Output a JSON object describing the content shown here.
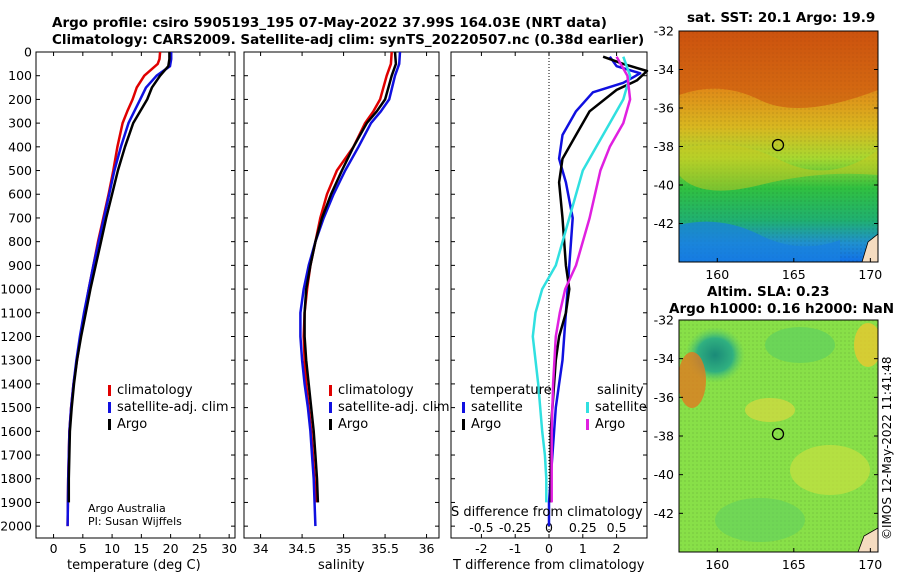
{
  "header": {
    "title_line1": "Argo profile: csiro 5905193_195 07-May-2022 37.99S 164.03E (NRT data)",
    "title_line2": "Climatology: CARS2009. Satellite-adj clim: synTS_20220507.nc (0.38d earlier)"
  },
  "credits": {
    "line1": "Argo Australia",
    "line2": "PI: Susan Wijffels",
    "side": "©IMOS 12-May-2022 11:41:48"
  },
  "colors": {
    "climatology": "#e00000",
    "satellite_adj": "#1010e0",
    "argo": "#000000",
    "satellite_salinity": "#30e0e0",
    "argo_salinity": "#e020e0"
  },
  "chart_data": [
    {
      "type": "line",
      "id": "temperature",
      "xlabel": "temperature (deg C)",
      "ylabel": "pressure",
      "xlim": [
        -3,
        31
      ],
      "ylim": [
        2050,
        0
      ],
      "xticks": [
        0,
        5,
        10,
        15,
        20,
        25,
        30
      ],
      "xtick_labels": [
        "0",
        "5",
        "10",
        "15",
        "20",
        "25",
        "30"
      ],
      "yticks": [
        0,
        100,
        200,
        300,
        400,
        500,
        600,
        700,
        800,
        900,
        1000,
        1100,
        1200,
        1300,
        1400,
        1500,
        1600,
        1700,
        1800,
        1900,
        2000
      ],
      "ytick_labels": [
        "0",
        "100",
        "200",
        "300",
        "400",
        "500",
        "600",
        "700",
        "800",
        "900",
        "1000",
        "1100",
        "1200",
        "1300",
        "1400",
        "1500",
        "1600",
        "1700",
        "1800",
        "1900",
        "2000"
      ],
      "legend": [
        "climatology",
        "satellite-adj. clim",
        "Argo"
      ],
      "series": [
        {
          "name": "climatology",
          "color": "#e00000",
          "x": [
            18.2,
            18.1,
            17.8,
            15.5,
            14.2,
            13.5,
            12.6,
            11.8,
            10.9,
            10.2,
            9.4,
            8.5,
            7.6,
            6.8,
            6.0,
            5.3,
            4.6,
            4.0,
            3.4,
            3.0,
            2.7,
            2.5,
            2.4
          ],
          "p": [
            0,
            30,
            50,
            100,
            150,
            200,
            250,
            300,
            400,
            500,
            600,
            700,
            800,
            900,
            1000,
            1100,
            1200,
            1300,
            1400,
            1500,
            1600,
            1800,
            2000
          ]
        },
        {
          "name": "satellite-adj. clim",
          "color": "#1010e0",
          "x": [
            20.1,
            20.1,
            19.9,
            17.6,
            15.8,
            14.8,
            13.8,
            12.8,
            11.5,
            10.4,
            9.5,
            8.6,
            7.7,
            6.8,
            6.0,
            5.2,
            4.5,
            3.9,
            3.4,
            3.0,
            2.7,
            2.5,
            2.4
          ],
          "p": [
            0,
            30,
            60,
            100,
            150,
            200,
            250,
            300,
            400,
            500,
            600,
            700,
            800,
            900,
            1000,
            1100,
            1200,
            1300,
            1400,
            1500,
            1600,
            1800,
            2000
          ]
        },
        {
          "name": "Argo",
          "color": "#000000",
          "x": [
            19.8,
            19.8,
            19.6,
            18.2,
            16.8,
            16.0,
            14.8,
            13.6,
            12.2,
            11.0,
            10.0,
            9.0,
            8.1,
            7.2,
            6.3,
            5.5,
            4.7,
            4.0,
            3.5,
            3.1,
            2.8,
            2.6,
            2.6
          ],
          "p": [
            0,
            30,
            60,
            100,
            150,
            200,
            250,
            300,
            400,
            500,
            600,
            700,
            800,
            900,
            1000,
            1100,
            1200,
            1300,
            1400,
            1500,
            1600,
            1800,
            1900
          ]
        }
      ]
    },
    {
      "type": "line",
      "id": "salinity",
      "xlabel": "salinity",
      "ylabel": "pressure",
      "xlim": [
        33.8,
        36.15
      ],
      "ylim": [
        2050,
        0
      ],
      "xticks": [
        34,
        34.5,
        35,
        35.5,
        36
      ],
      "xtick_labels": [
        "34",
        "34.5",
        "35",
        "35.5",
        "36"
      ],
      "legend": [
        "climatology",
        "satellite-adj. clim",
        "Argo"
      ],
      "series": [
        {
          "name": "climatology",
          "color": "#e00000",
          "x": [
            35.58,
            35.57,
            35.52,
            35.44,
            35.36,
            35.26,
            35.12,
            34.92,
            34.8,
            34.72,
            34.66,
            34.6,
            34.56,
            34.53,
            34.52,
            34.53,
            34.55,
            34.58,
            34.61,
            34.63,
            34.65,
            34.67
          ],
          "p": [
            0,
            50,
            100,
            200,
            250,
            300,
            400,
            500,
            600,
            700,
            800,
            900,
            1000,
            1100,
            1200,
            1300,
            1400,
            1500,
            1600,
            1700,
            1800,
            1900
          ]
        },
        {
          "name": "satellite-adj. clim",
          "color": "#1010e0",
          "x": [
            35.68,
            35.67,
            35.62,
            35.55,
            35.45,
            35.33,
            35.18,
            35.02,
            34.88,
            34.76,
            34.66,
            34.58,
            34.52,
            34.48,
            34.48,
            34.5,
            34.53,
            34.57,
            34.6,
            34.62,
            34.64,
            34.66
          ],
          "p": [
            0,
            50,
            100,
            200,
            250,
            300,
            400,
            500,
            600,
            700,
            800,
            900,
            1000,
            1100,
            1200,
            1300,
            1400,
            1500,
            1600,
            1700,
            1800,
            2000
          ]
        },
        {
          "name": "Argo",
          "color": "#000000",
          "x": [
            35.62,
            35.63,
            35.58,
            35.5,
            35.4,
            35.28,
            35.12,
            34.98,
            34.85,
            34.74,
            34.66,
            34.6,
            34.55,
            34.53,
            34.53,
            34.55,
            34.58,
            34.61,
            34.64,
            34.66,
            34.68,
            34.69
          ],
          "p": [
            0,
            50,
            100,
            200,
            250,
            300,
            400,
            500,
            600,
            700,
            800,
            900,
            1000,
            1100,
            1200,
            1300,
            1400,
            1500,
            1600,
            1700,
            1800,
            1900
          ]
        }
      ]
    },
    {
      "type": "line",
      "id": "difference",
      "xlabel": "T difference from climatology",
      "xlabel_top": "S difference from climatology",
      "xlim": [
        -2.9,
        2.9
      ],
      "ylim": [
        2050,
        0
      ],
      "xticks": [
        -2,
        -1,
        0,
        1,
        2
      ],
      "xtick_labels": [
        "-2",
        "-1",
        "0",
        "1",
        "2"
      ],
      "sticks": [
        -0.5,
        -0.25,
        0,
        0.25,
        0.5
      ],
      "stick_labels": [
        "-0.5",
        "-0.25",
        "0",
        "0.25",
        "0.5"
      ],
      "legend_left_title": "temperature",
      "legend_right_title": "salinity",
      "legend_left": [
        "satellite",
        "Argo"
      ],
      "legend_right": [
        "satellite",
        "Argo"
      ],
      "series": [
        {
          "name": "T satellite",
          "color": "#1010e0",
          "x": [
            1.8,
            2.0,
            2.7,
            2.2,
            1.3,
            0.8,
            0.4,
            0.3,
            0.5,
            0.7,
            0.6,
            0.5,
            0.4,
            0.3,
            0.2,
            0.15,
            0.1,
            0.05,
            0.0,
            0.0
          ],
          "p": [
            20,
            60,
            90,
            130,
            170,
            250,
            350,
            450,
            550,
            700,
            900,
            1100,
            1300,
            1400,
            1500,
            1600,
            1700,
            1800,
            1900,
            2000
          ]
        },
        {
          "name": "T Argo",
          "color": "#000000",
          "x": [
            1.6,
            2.2,
            2.9,
            2.6,
            2.0,
            1.2,
            0.8,
            0.4,
            0.3,
            0.4,
            0.5,
            0.6,
            0.5,
            0.3,
            0.2,
            0.1,
            0.05,
            0.05,
            0.05,
            0.05
          ],
          "p": [
            20,
            50,
            80,
            120,
            160,
            250,
            350,
            450,
            550,
            700,
            900,
            1000,
            1100,
            1200,
            1300,
            1500,
            1600,
            1700,
            1800,
            1900
          ]
        },
        {
          "name": "S satellite",
          "color": "#30e0e0",
          "x": [
            0.55,
            0.6,
            0.55,
            0.45,
            0.35,
            0.25,
            0.15,
            0.05,
            -0.05,
            -0.1,
            -0.12,
            -0.1,
            -0.08,
            -0.05,
            -0.03,
            -0.02,
            -0.02
          ],
          "p": [
            20,
            100,
            200,
            300,
            400,
            500,
            700,
            900,
            1000,
            1100,
            1200,
            1300,
            1400,
            1600,
            1700,
            1800,
            1900
          ]
        },
        {
          "name": "S Argo",
          "color": "#e020e0",
          "x": [
            0.5,
            0.58,
            0.6,
            0.55,
            0.45,
            0.38,
            0.3,
            0.2,
            0.12,
            0.08,
            0.05,
            0.03,
            0.02,
            0.02,
            0.02
          ],
          "p": [
            20,
            100,
            200,
            300,
            400,
            500,
            700,
            900,
            1000,
            1100,
            1200,
            1400,
            1600,
            1800,
            1900
          ]
        }
      ]
    },
    {
      "type": "heatmap",
      "id": "sst_map",
      "title": "sat. SST: 20.1 Argo: 19.9",
      "xticks": [
        160,
        165,
        170
      ],
      "xtick_labels": [
        "160",
        "165",
        "170"
      ],
      "yticks": [
        -32,
        -34,
        -36,
        -38,
        -40,
        -42
      ],
      "ytick_labels": [
        "-32",
        "-34",
        "-36",
        "-38",
        "-40",
        "-42"
      ],
      "xlim": [
        157.5,
        170.5
      ],
      "ylim": [
        -44.0,
        -32.0
      ],
      "argo_position": [
        164.03,
        -37.99
      ]
    },
    {
      "type": "heatmap",
      "id": "sla_map",
      "title_line1": "Altim. SLA: 0.23",
      "title_line2": "Argo h1000: 0.16 h2000: NaN",
      "xticks": [
        160,
        165,
        170
      ],
      "xtick_labels": [
        "160",
        "165",
        "170"
      ],
      "yticks": [
        -32,
        -34,
        -36,
        -38,
        -40,
        -42
      ],
      "ytick_labels": [
        "-32",
        "-34",
        "-36",
        "-38",
        "-40",
        "-42"
      ],
      "xlim": [
        157.5,
        170.5
      ],
      "ylim": [
        -44.0,
        -32.0
      ],
      "argo_position": [
        164.03,
        -37.99
      ]
    }
  ]
}
